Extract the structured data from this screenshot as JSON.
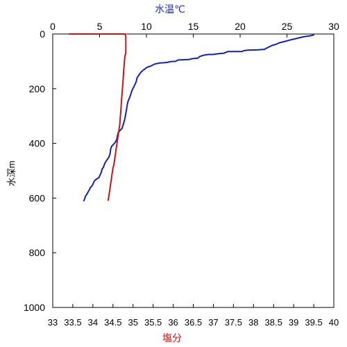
{
  "chart_data": {
    "type": "line",
    "y_axis": {
      "label": "水深m",
      "range": [
        0,
        1000
      ],
      "ticks": [
        0,
        200,
        400,
        600,
        800,
        1000
      ],
      "direction": "downward"
    },
    "x_top": {
      "label": "水温℃",
      "range": [
        0,
        30
      ],
      "ticks": [
        0,
        5,
        10,
        15,
        20,
        25,
        30
      ],
      "color": "#1f2fb0"
    },
    "x_bottom": {
      "label": "塩分",
      "range": [
        33,
        40
      ],
      "ticks": [
        33,
        33.5,
        34,
        34.5,
        35,
        35.5,
        36,
        36.5,
        37,
        37.5,
        38,
        38.5,
        39,
        39.5,
        40
      ],
      "color": "#cc1111"
    },
    "series": [
      {
        "id": "temperature",
        "axis": "top",
        "color": "#1020b8",
        "points": [
          [
            27.9,
            0
          ],
          [
            27.8,
            4
          ],
          [
            27.4,
            7
          ],
          [
            26.8,
            10
          ],
          [
            26.3,
            14
          ],
          [
            25.8,
            18
          ],
          [
            25.3,
            22
          ],
          [
            24.8,
            27
          ],
          [
            24.2,
            32
          ],
          [
            23.8,
            38
          ],
          [
            23.4,
            42
          ],
          [
            23.1,
            47
          ],
          [
            22.8,
            52
          ],
          [
            22.6,
            56
          ],
          [
            21.8,
            58
          ],
          [
            20.8,
            59
          ],
          [
            20.4,
            61
          ],
          [
            20.2,
            64
          ],
          [
            19.5,
            64
          ],
          [
            18.7,
            64
          ],
          [
            18.3,
            70
          ],
          [
            17.7,
            72
          ],
          [
            17.1,
            75
          ],
          [
            16.6,
            75
          ],
          [
            16.2,
            77
          ],
          [
            15.7,
            82
          ],
          [
            15.5,
            88
          ],
          [
            14.9,
            90
          ],
          [
            14.6,
            93
          ],
          [
            14.1,
            94
          ],
          [
            13.4,
            95
          ],
          [
            13.1,
            100
          ],
          [
            12.6,
            101
          ],
          [
            12.3,
            103
          ],
          [
            11.9,
            105
          ],
          [
            11.4,
            106
          ],
          [
            11.0,
            109
          ],
          [
            10.8,
            111
          ],
          [
            10.6,
            115
          ],
          [
            10.4,
            118
          ],
          [
            10.2,
            120
          ],
          [
            10.0,
            123
          ],
          [
            9.9,
            126
          ],
          [
            9.8,
            129
          ],
          [
            9.7,
            131
          ],
          [
            9.6,
            134
          ],
          [
            9.5,
            137
          ],
          [
            9.4,
            140
          ],
          [
            9.3,
            145
          ],
          [
            9.2,
            150
          ],
          [
            9.1,
            155
          ],
          [
            9.0,
            160
          ],
          [
            8.95,
            168
          ],
          [
            8.9,
            175
          ],
          [
            8.8,
            182
          ],
          [
            8.7,
            190
          ],
          [
            8.6,
            197
          ],
          [
            8.5,
            203
          ],
          [
            8.4,
            212
          ],
          [
            8.3,
            223
          ],
          [
            8.2,
            233
          ],
          [
            8.1,
            241
          ],
          [
            8.0,
            250
          ],
          [
            7.95,
            260
          ],
          [
            7.9,
            270
          ],
          [
            7.85,
            280
          ],
          [
            7.8,
            290
          ],
          [
            7.75,
            300
          ],
          [
            7.7,
            310
          ],
          [
            7.6,
            322
          ],
          [
            7.5,
            334
          ],
          [
            7.4,
            345
          ],
          [
            7.2,
            352
          ],
          [
            7.0,
            360
          ],
          [
            6.9,
            372
          ],
          [
            6.85,
            383
          ],
          [
            6.7,
            395
          ],
          [
            6.5,
            403
          ],
          [
            6.3,
            410
          ],
          [
            6.2,
            418
          ],
          [
            6.15,
            430
          ],
          [
            6.1,
            440
          ],
          [
            6.0,
            450
          ],
          [
            5.8,
            460
          ],
          [
            5.6,
            470
          ],
          [
            5.5,
            478
          ],
          [
            5.4,
            488
          ],
          [
            5.25,
            495
          ],
          [
            5.2,
            504
          ],
          [
            5.1,
            512
          ],
          [
            5.0,
            520
          ],
          [
            4.9,
            526
          ],
          [
            4.7,
            530
          ],
          [
            4.5,
            535
          ],
          [
            4.4,
            540
          ],
          [
            4.3,
            548
          ],
          [
            4.2,
            555
          ],
          [
            4.0,
            562
          ],
          [
            3.9,
            570
          ],
          [
            3.8,
            576
          ],
          [
            3.7,
            582
          ],
          [
            3.6,
            588
          ],
          [
            3.5,
            593
          ],
          [
            3.45,
            598
          ],
          [
            3.4,
            603
          ],
          [
            3.35,
            607
          ],
          [
            3.3,
            612
          ]
        ]
      },
      {
        "id": "salinity",
        "axis": "bottom",
        "color": "#cc1111",
        "points": [
          [
            33.4,
            0
          ],
          [
            34.8,
            0
          ],
          [
            34.82,
            10
          ],
          [
            34.82,
            30
          ],
          [
            34.82,
            50
          ],
          [
            34.82,
            70
          ],
          [
            34.8,
            80
          ],
          [
            34.79,
            90
          ],
          [
            34.78,
            110
          ],
          [
            34.77,
            130
          ],
          [
            34.76,
            150
          ],
          [
            34.75,
            170
          ],
          [
            34.74,
            190
          ],
          [
            34.73,
            210
          ],
          [
            34.72,
            230
          ],
          [
            34.71,
            250
          ],
          [
            34.7,
            270
          ],
          [
            34.69,
            290
          ],
          [
            34.68,
            310
          ],
          [
            34.67,
            330
          ],
          [
            34.66,
            340
          ],
          [
            34.65,
            350
          ],
          [
            34.64,
            360
          ],
          [
            34.63,
            370
          ],
          [
            34.62,
            380
          ],
          [
            34.61,
            390
          ],
          [
            34.6,
            400
          ],
          [
            34.59,
            410
          ],
          [
            34.58,
            420
          ],
          [
            34.57,
            430
          ],
          [
            34.56,
            440
          ],
          [
            34.55,
            450
          ],
          [
            34.54,
            460
          ],
          [
            34.53,
            470
          ],
          [
            34.52,
            480
          ],
          [
            34.5,
            490
          ],
          [
            34.49,
            500
          ],
          [
            34.48,
            510
          ],
          [
            34.47,
            520
          ],
          [
            34.46,
            530
          ],
          [
            34.45,
            540
          ],
          [
            34.44,
            550
          ],
          [
            34.43,
            560
          ],
          [
            34.42,
            570
          ],
          [
            34.41,
            580
          ],
          [
            34.4,
            590
          ],
          [
            34.39,
            600
          ],
          [
            34.38,
            610
          ]
        ]
      }
    ]
  }
}
